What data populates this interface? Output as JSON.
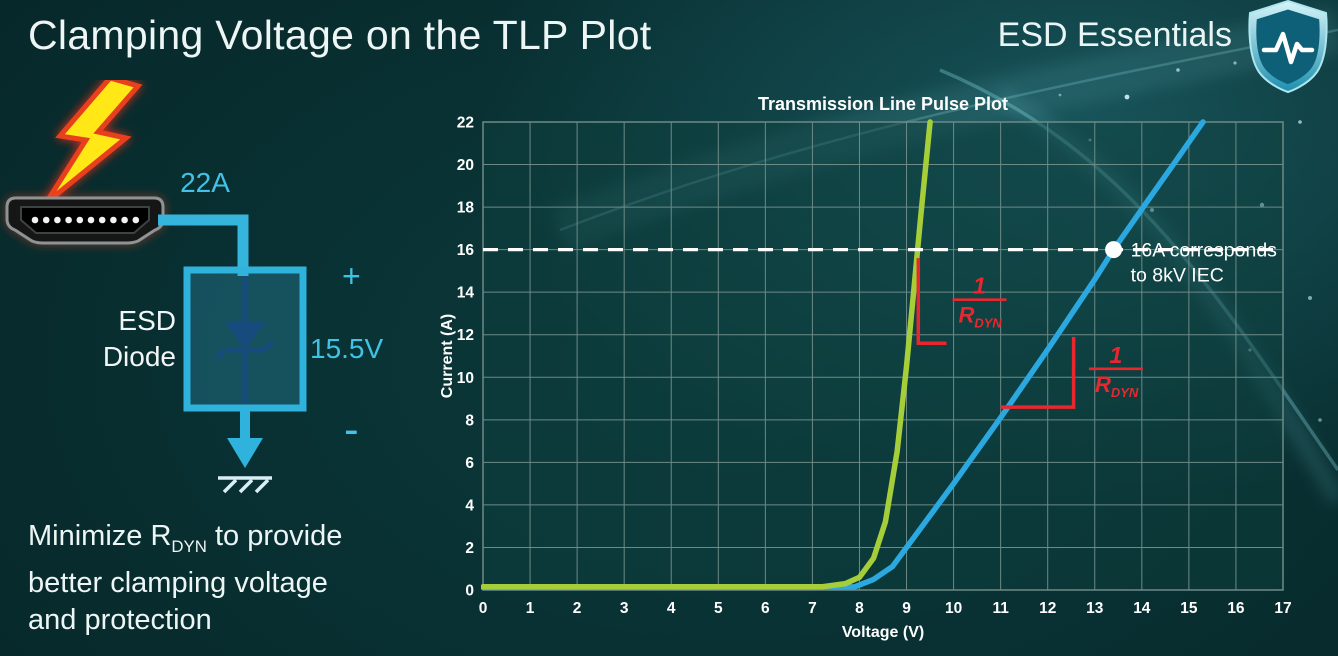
{
  "slide": {
    "title": "Clamping Voltage on the TLP Plot",
    "brand": "ESD Essentials"
  },
  "diagram": {
    "surge_current_label": "22A",
    "device_label_line1": "ESD",
    "device_label_line2": "Diode",
    "polarity_plus": "+",
    "clamp_voltage_label": "15.5V",
    "polarity_minus": "-"
  },
  "footer": {
    "line1_pre": "Minimize R",
    "line1_sub": "DYN",
    "line1_post": " to provide",
    "line2": "better clamping voltage",
    "line3": "and protection"
  },
  "chart_data": {
    "type": "line",
    "title": "Transmission Line Pulse Plot",
    "xlabel": "Voltage (V)",
    "ylabel": "Current (A)",
    "xlim": [
      0,
      17
    ],
    "ylim": [
      0,
      22
    ],
    "x_ticks": [
      0,
      1,
      2,
      3,
      4,
      5,
      6,
      7,
      8,
      9,
      10,
      11,
      12,
      13,
      14,
      15,
      16,
      17
    ],
    "y_ticks": [
      0,
      2,
      4,
      6,
      8,
      10,
      12,
      14,
      16,
      18,
      20,
      22
    ],
    "grid": true,
    "colors": {
      "grid": "#6d8a87",
      "axis_text": "#ffffff"
    },
    "series": [
      {
        "name": "high-rdyn-device-blue",
        "color": "#2ba8e0",
        "points": [
          [
            0,
            0.12
          ],
          [
            7.9,
            0.15
          ],
          [
            8.3,
            0.5
          ],
          [
            8.7,
            1.1
          ],
          [
            9.0,
            2.0
          ],
          [
            9.5,
            3.5
          ],
          [
            10,
            5.0
          ],
          [
            11,
            8.1
          ],
          [
            12,
            11.3
          ],
          [
            13,
            14.6
          ],
          [
            13.4,
            16
          ],
          [
            14,
            17.9
          ],
          [
            14.7,
            20.1
          ],
          [
            15.3,
            22
          ]
        ]
      },
      {
        "name": "low-rdyn-esd-diode-green",
        "color": "#a6ce39",
        "points": [
          [
            0,
            0.15
          ],
          [
            7.2,
            0.15
          ],
          [
            7.7,
            0.3
          ],
          [
            8.0,
            0.6
          ],
          [
            8.3,
            1.5
          ],
          [
            8.55,
            3.2
          ],
          [
            8.8,
            6.5
          ],
          [
            9.0,
            10.5
          ],
          [
            9.15,
            14
          ],
          [
            9.3,
            17.5
          ],
          [
            9.5,
            22
          ]
        ]
      }
    ],
    "reference_line": {
      "y": 16,
      "color": "#ffffff",
      "marker_x": 13.4,
      "label_line1": "16A corresponds",
      "label_line2": "to 8kV IEC"
    },
    "slope_markers": [
      {
        "polyline": [
          [
            9.25,
            15.6
          ],
          [
            9.25,
            11.6
          ],
          [
            9.85,
            11.6
          ]
        ],
        "label_x": 10.55,
        "label_y": 13.6
      },
      {
        "polyline": [
          [
            11.0,
            8.6
          ],
          [
            12.55,
            8.6
          ],
          [
            12.55,
            11.9
          ]
        ],
        "label_x": 13.45,
        "label_y": 10.35
      }
    ],
    "slope_label": {
      "numerator": "1",
      "denominator": "R",
      "denominator_sub": "DYN",
      "color": "#e9272e"
    }
  }
}
